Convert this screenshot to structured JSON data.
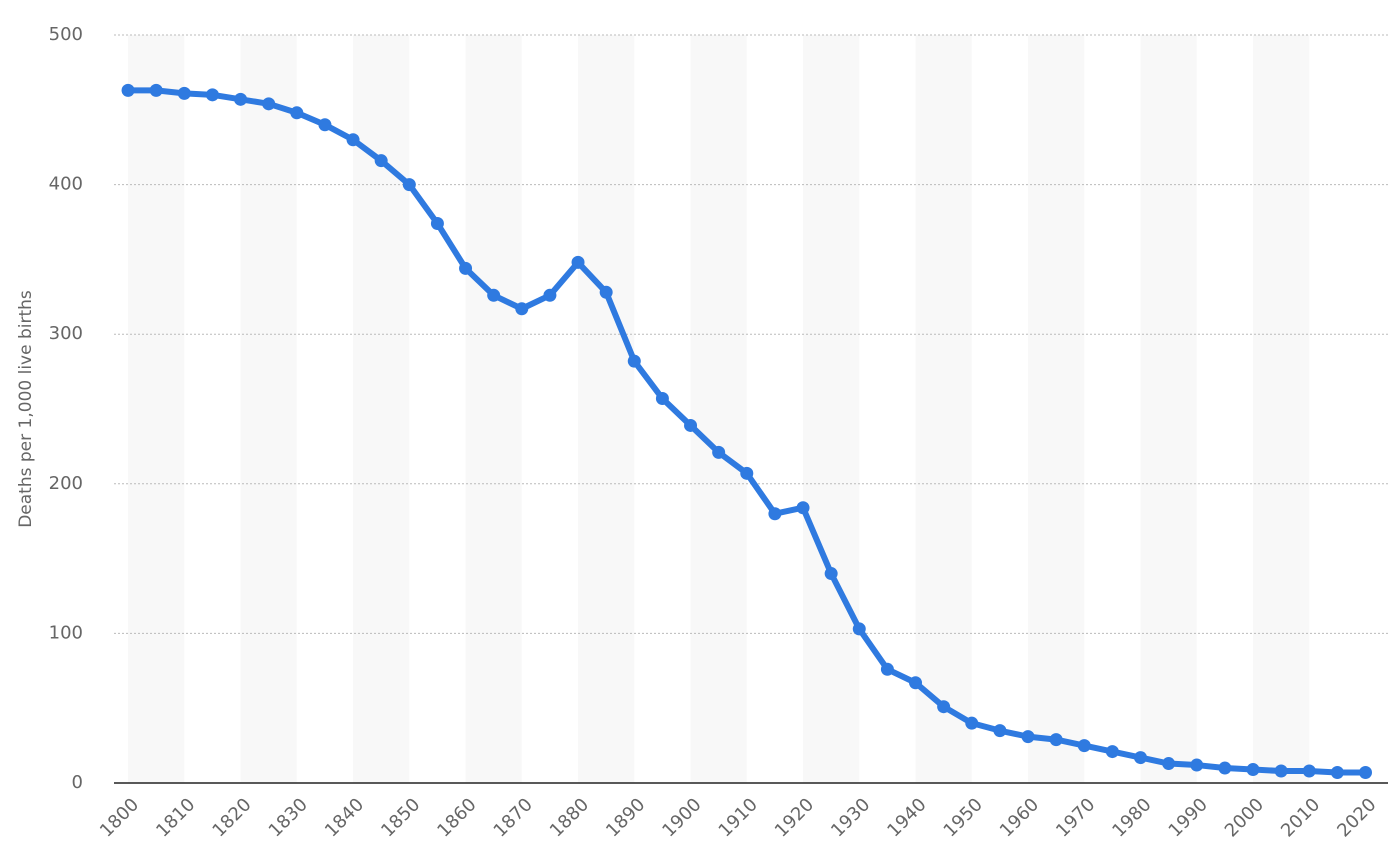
{
  "chart_data": {
    "type": "line",
    "y_label": "Deaths per 1,000 live births",
    "x": [
      1800,
      1805,
      1810,
      1815,
      1820,
      1825,
      1830,
      1835,
      1840,
      1845,
      1850,
      1855,
      1860,
      1865,
      1870,
      1875,
      1880,
      1885,
      1890,
      1895,
      1900,
      1905,
      1910,
      1915,
      1920,
      1925,
      1930,
      1935,
      1940,
      1945,
      1950,
      1955,
      1960,
      1965,
      1970,
      1975,
      1980,
      1985,
      1990,
      1995,
      2000,
      2005,
      2010,
      2015,
      2020
    ],
    "series": [
      {
        "color": "#2f7ae0",
        "values": [
          463,
          463,
          461,
          460,
          457,
          454,
          448,
          440,
          430,
          416,
          400,
          374,
          344,
          326,
          317,
          326,
          348,
          328,
          282,
          257,
          239,
          221,
          207,
          180,
          184,
          140,
          103,
          76,
          67,
          51,
          40,
          35,
          31,
          29,
          25,
          21,
          17,
          13,
          12,
          10,
          9,
          8,
          8,
          7,
          7
        ]
      }
    ],
    "xlim": [
      1797.5,
      2024
    ],
    "xticks": [
      1800,
      1810,
      1820,
      1830,
      1840,
      1850,
      1860,
      1870,
      1880,
      1890,
      1900,
      1910,
      1920,
      1930,
      1940,
      1950,
      1960,
      1970,
      1980,
      1990,
      2000,
      2010,
      2020
    ],
    "ylim": [
      0,
      500
    ],
    "yticks": [
      0,
      100,
      200,
      300,
      400,
      500
    ],
    "grid": true,
    "alternating_bands": true
  }
}
